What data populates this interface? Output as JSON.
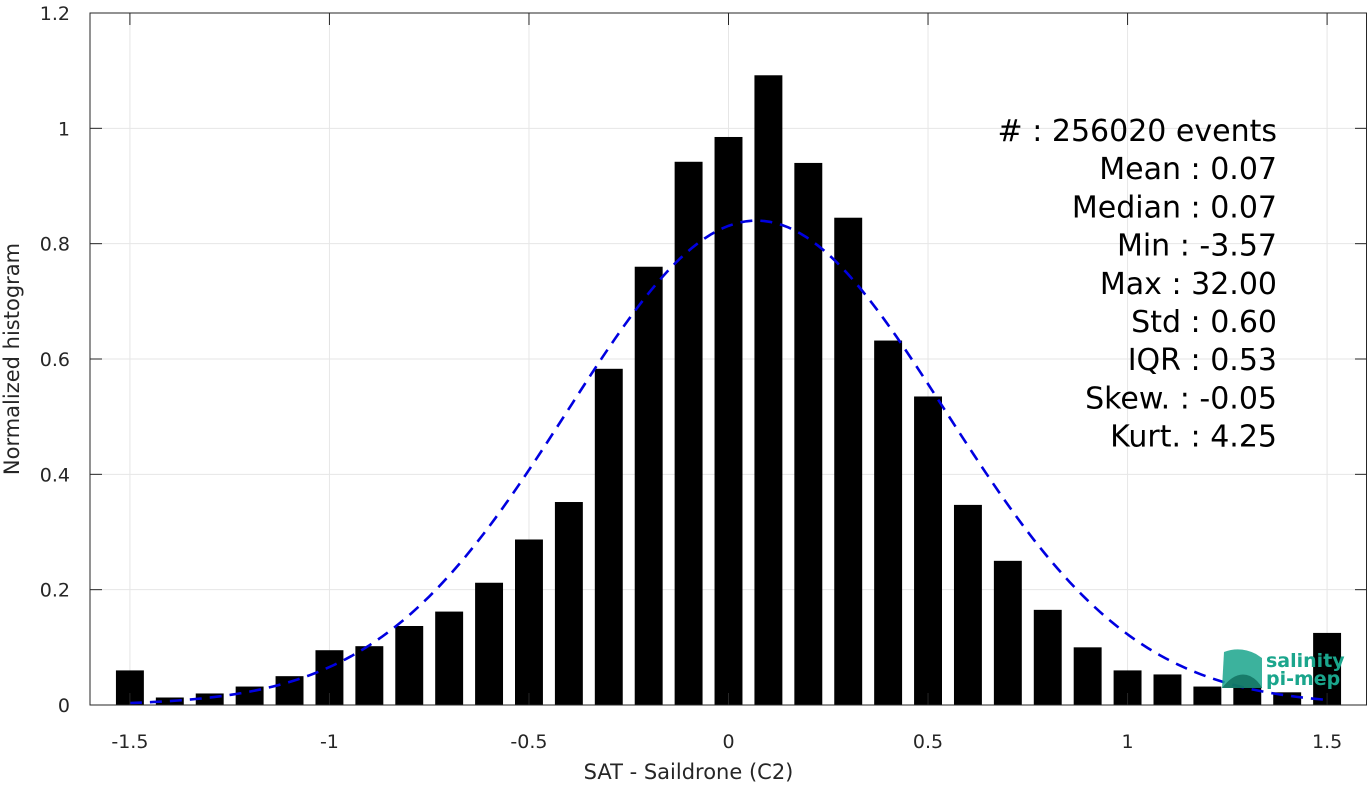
{
  "chart_data": {
    "type": "bar",
    "xlabel": "SAT - Saildrone (C2)",
    "ylabel": "Normalized histogram",
    "xlim": [
      -1.6,
      1.6
    ],
    "ylim": [
      0,
      1.2
    ],
    "xticks": [
      -1.5,
      -1,
      -0.5,
      0,
      0.5,
      1,
      1.5
    ],
    "xtick_labels": [
      "-1.5",
      "-1",
      "-0.5",
      "0",
      "0.5",
      "1",
      "1.5"
    ],
    "yticks": [
      0,
      0.2,
      0.4,
      0.6,
      0.8,
      1,
      1.2
    ],
    "ytick_labels": [
      "0",
      "0.2",
      "0.4",
      "0.6",
      "0.8",
      "1",
      "1.2"
    ],
    "grid": true,
    "bar_width": 0.07,
    "bar_color": "#000000",
    "bars": {
      "x": [
        -1.5,
        -1.4,
        -1.3,
        -1.2,
        -1.1,
        -1.0,
        -0.9,
        -0.8,
        -0.7,
        -0.6,
        -0.5,
        -0.4,
        -0.3,
        -0.2,
        -0.1,
        0.0,
        0.1,
        0.2,
        0.3,
        0.4,
        0.5,
        0.6,
        0.7,
        0.8,
        0.9,
        1.0,
        1.1,
        1.2,
        1.3,
        1.4,
        1.5
      ],
      "values": [
        0.06,
        0.013,
        0.02,
        0.032,
        0.05,
        0.095,
        0.102,
        0.137,
        0.162,
        0.212,
        0.287,
        0.352,
        0.583,
        0.76,
        0.942,
        0.985,
        1.092,
        0.94,
        0.845,
        0.632,
        0.535,
        0.347,
        0.25,
        0.165,
        0.1,
        0.06,
        0.053,
        0.032,
        0.03,
        0.022,
        0.125
      ]
    },
    "fit_curve": {
      "style": "dashed",
      "color": "#0000e0",
      "mean": 0.07,
      "std": 0.474,
      "peak": 0.84,
      "x_range": [
        -1.5,
        1.5
      ]
    },
    "stats": [
      {
        "label": "#",
        "value": ": 256020 events"
      },
      {
        "label": "Mean",
        "value": ": 0.07"
      },
      {
        "label": "Median",
        "value": ": 0.07"
      },
      {
        "label": "Min",
        "value": ": -3.57"
      },
      {
        "label": "Max",
        "value": ": 32.00"
      },
      {
        "label": "Std",
        "value": ": 0.60"
      },
      {
        "label": "IQR",
        "value": ": 0.53"
      },
      {
        "label": "Skew.",
        "value": ": -0.05"
      },
      {
        "label": "Kurt.",
        "value": ": 4.25"
      }
    ]
  },
  "logo": {
    "line1": "salinity",
    "line2": "pi-mep",
    "color": "#1aa58c"
  }
}
